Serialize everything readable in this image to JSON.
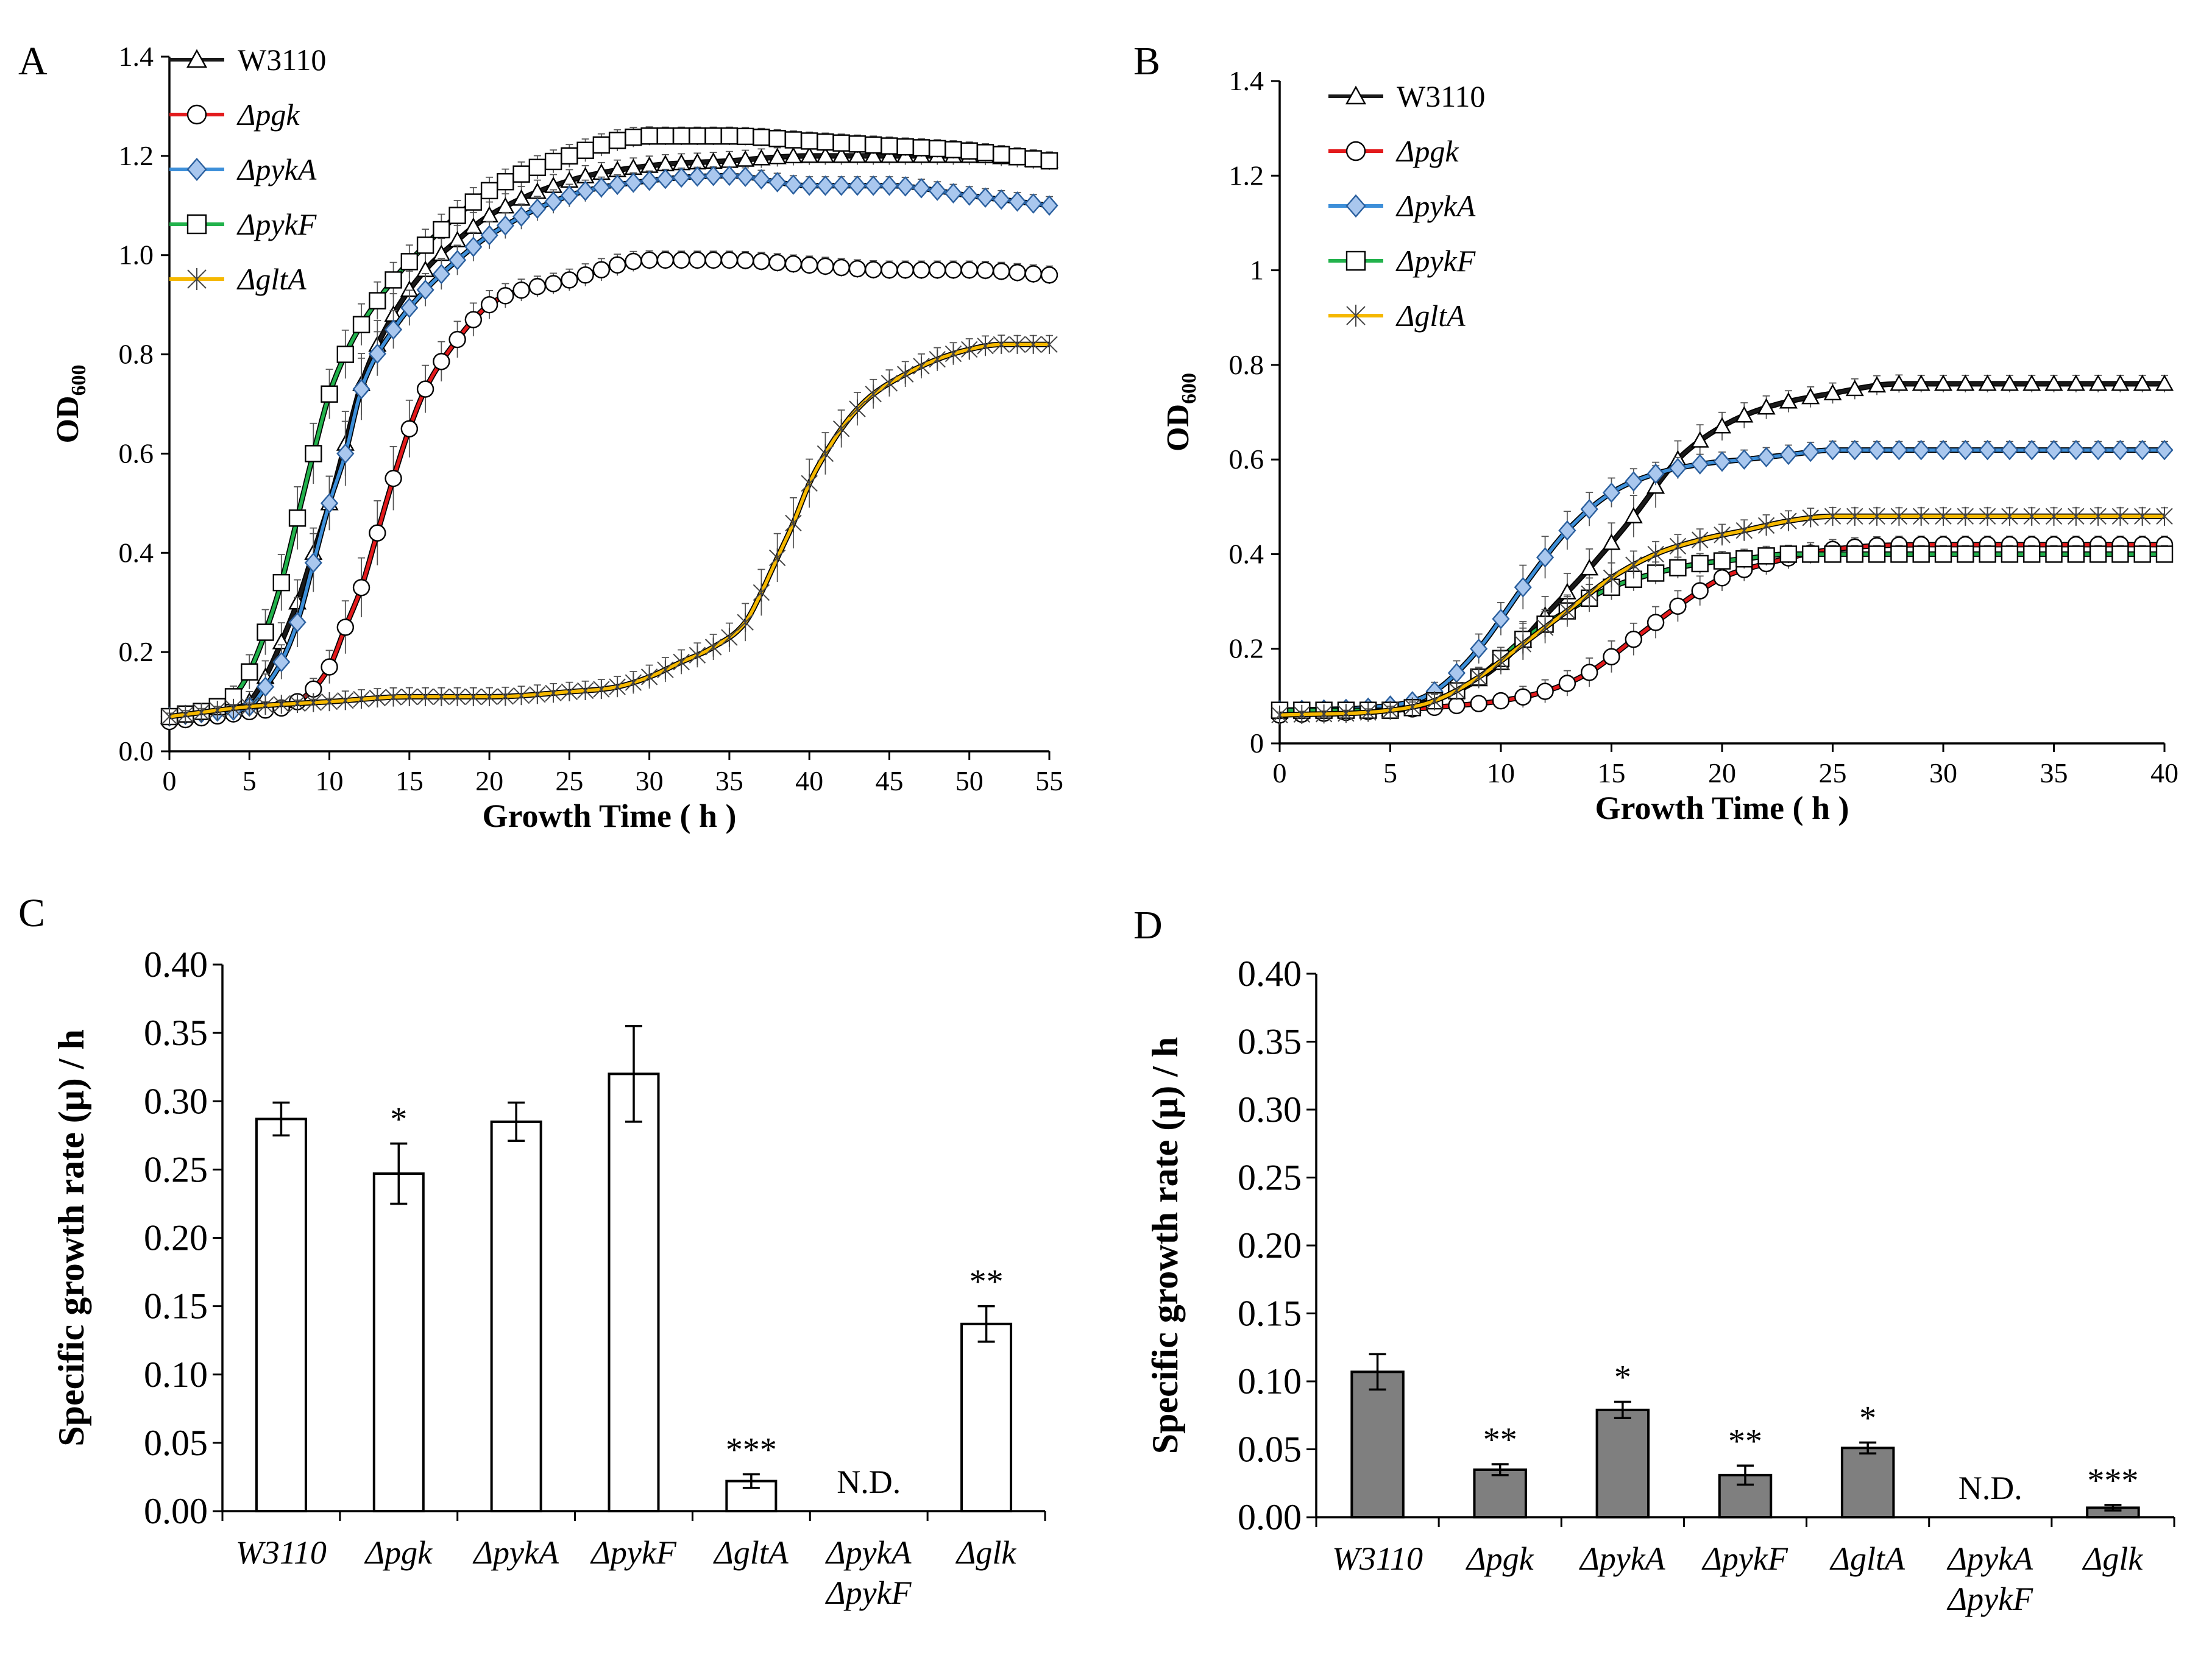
{
  "figure": {
    "styles": {
      "line_colors": {
        "W3110": "#1a1a1a",
        "pgk": "#e31a1c",
        "pykA": "#3d8fd9",
        "pykF": "#22b24c",
        "gltA": "#f5b800"
      },
      "bar_fill_C": "#ffffff",
      "bar_fill_D": "#7f7f7f",
      "stroke": "#000000"
    }
  },
  "chart_data": [
    {
      "panel": "A",
      "type": "line",
      "xlabel": "Growth Time ( h )",
      "ylabel_main": "OD",
      "ylabel_sub": "600",
      "xlim": [
        0,
        55
      ],
      "ylim": [
        0,
        1.4
      ],
      "xticks": [
        "0",
        "5",
        "10",
        "15",
        "20",
        "25",
        "30",
        "35",
        "40",
        "45",
        "50",
        "55"
      ],
      "yticks": [
        "0.0",
        "0.2",
        "0.4",
        "0.6",
        "0.8",
        "1.0",
        "1.2",
        "1.4"
      ],
      "legend": [
        "W3110",
        "Δpgk",
        "ΔpykA",
        "ΔpykF",
        "ΔgltA"
      ],
      "series": [
        {
          "name": "W3110",
          "key": "W3110",
          "marker": "triangle",
          "x": [
            0,
            3,
            5,
            6,
            7,
            8,
            9,
            10,
            11,
            12,
            14,
            16,
            18,
            20,
            25,
            30,
            35,
            40,
            45,
            50,
            55
          ],
          "y": [
            0.07,
            0.08,
            0.1,
            0.15,
            0.22,
            0.3,
            0.4,
            0.5,
            0.62,
            0.74,
            0.88,
            0.97,
            1.03,
            1.08,
            1.15,
            1.18,
            1.19,
            1.2,
            1.2,
            1.2,
            1.19
          ]
        },
        {
          "name": "Δpgk",
          "key": "pgk",
          "marker": "circle",
          "x": [
            0,
            5,
            8,
            10,
            11,
            12,
            13,
            14,
            15,
            16,
            18,
            20,
            25,
            30,
            35,
            40,
            45,
            50,
            55
          ],
          "y": [
            0.06,
            0.08,
            0.1,
            0.17,
            0.25,
            0.33,
            0.44,
            0.55,
            0.65,
            0.73,
            0.83,
            0.9,
            0.95,
            0.99,
            0.99,
            0.98,
            0.97,
            0.97,
            0.96
          ]
        },
        {
          "name": "ΔpykA",
          "key": "pykA",
          "marker": "diamond",
          "x": [
            0,
            3,
            5,
            6,
            7,
            8,
            9,
            10,
            11,
            12,
            14,
            16,
            18,
            20,
            25,
            30,
            35,
            40,
            45,
            50,
            55
          ],
          "y": [
            0.07,
            0.08,
            0.09,
            0.13,
            0.18,
            0.26,
            0.38,
            0.5,
            0.6,
            0.73,
            0.85,
            0.93,
            0.99,
            1.04,
            1.12,
            1.15,
            1.16,
            1.14,
            1.14,
            1.12,
            1.1
          ]
        },
        {
          "name": "ΔpykF",
          "key": "pykF",
          "marker": "square",
          "x": [
            0,
            3,
            4,
            5,
            6,
            7,
            8,
            9,
            10,
            11,
            12,
            14,
            16,
            18,
            20,
            25,
            30,
            35,
            40,
            45,
            50,
            55
          ],
          "y": [
            0.07,
            0.09,
            0.11,
            0.16,
            0.24,
            0.34,
            0.47,
            0.6,
            0.72,
            0.8,
            0.86,
            0.95,
            1.02,
            1.08,
            1.13,
            1.2,
            1.24,
            1.24,
            1.23,
            1.22,
            1.21,
            1.19
          ]
        },
        {
          "name": "ΔgltA",
          "key": "gltA",
          "marker": "asterisk",
          "x": [
            0,
            5,
            10,
            15,
            20,
            25,
            28,
            30,
            32,
            34,
            36,
            37,
            38,
            39,
            40,
            41,
            42,
            43,
            44,
            46,
            48,
            50,
            52,
            55
          ],
          "y": [
            0.07,
            0.09,
            0.1,
            0.11,
            0.11,
            0.12,
            0.13,
            0.15,
            0.18,
            0.21,
            0.26,
            0.32,
            0.39,
            0.46,
            0.54,
            0.6,
            0.65,
            0.69,
            0.72,
            0.76,
            0.79,
            0.81,
            0.82,
            0.82
          ]
        }
      ]
    },
    {
      "panel": "B",
      "type": "line",
      "xlabel": "Growth Time ( h )",
      "ylabel_main": "OD",
      "ylabel_sub": "600",
      "xlim": [
        0,
        40
      ],
      "ylim": [
        0,
        1.4
      ],
      "xticks": [
        "0",
        "5",
        "10",
        "15",
        "20",
        "25",
        "30",
        "35",
        "40"
      ],
      "yticks": [
        "0",
        "0.2",
        "0.4",
        "0.6",
        "0.8",
        "1",
        "1.2",
        "1.4"
      ],
      "legend": [
        "W3110",
        "Δpgk",
        "ΔpykA",
        "ΔpykF",
        "ΔgltA"
      ],
      "series": [
        {
          "name": "W3110",
          "key": "W3110",
          "marker": "triangle",
          "x": [
            0,
            4,
            6,
            8,
            10,
            12,
            14,
            16,
            18,
            20,
            22,
            25,
            28,
            30,
            35,
            40
          ],
          "y": [
            0.07,
            0.07,
            0.08,
            0.11,
            0.17,
            0.27,
            0.37,
            0.48,
            0.6,
            0.67,
            0.71,
            0.74,
            0.76,
            0.76,
            0.76,
            0.76
          ]
        },
        {
          "name": "Δpgk",
          "key": "pgk",
          "marker": "circle",
          "x": [
            0,
            5,
            8,
            10,
            12,
            14,
            16,
            18,
            20,
            22,
            25,
            30,
            35,
            40
          ],
          "y": [
            0.06,
            0.07,
            0.08,
            0.09,
            0.11,
            0.15,
            0.22,
            0.29,
            0.35,
            0.38,
            0.41,
            0.42,
            0.42,
            0.42
          ]
        },
        {
          "name": "ΔpykA",
          "key": "pykA",
          "marker": "diamond",
          "x": [
            0,
            5,
            7,
            9,
            11,
            13,
            15,
            17,
            19,
            21,
            23,
            25,
            30,
            35,
            40
          ],
          "y": [
            0.07,
            0.08,
            0.11,
            0.2,
            0.33,
            0.45,
            0.53,
            0.57,
            0.59,
            0.6,
            0.61,
            0.62,
            0.62,
            0.62,
            0.62
          ]
        },
        {
          "name": "ΔpykF",
          "key": "pykF",
          "marker": "square",
          "x": [
            0,
            5,
            7,
            9,
            11,
            13,
            15,
            17,
            19,
            21,
            23,
            25,
            30,
            35,
            40
          ],
          "y": [
            0.07,
            0.07,
            0.09,
            0.14,
            0.22,
            0.28,
            0.33,
            0.36,
            0.38,
            0.39,
            0.4,
            0.4,
            0.4,
            0.4,
            0.4
          ]
        },
        {
          "name": "ΔgltA",
          "key": "gltA",
          "marker": "asterisk",
          "x": [
            0,
            5,
            7,
            9,
            11,
            13,
            15,
            17,
            19,
            21,
            23,
            25,
            30,
            35,
            40
          ],
          "y": [
            0.06,
            0.07,
            0.09,
            0.14,
            0.21,
            0.28,
            0.35,
            0.4,
            0.43,
            0.45,
            0.47,
            0.48,
            0.48,
            0.48,
            0.48
          ]
        }
      ]
    },
    {
      "panel": "C",
      "type": "bar",
      "ylabel": "Specific growth rate (μ) / h",
      "ylim": [
        0,
        0.4
      ],
      "yticks": [
        "0.00",
        "0.05",
        "0.10",
        "0.15",
        "0.20",
        "0.25",
        "0.30",
        "0.35",
        "0.40"
      ],
      "categories": [
        "W3110",
        "Δpgk",
        "ΔpykA",
        "ΔpykF",
        "ΔgltA",
        "ΔpykA ΔpykF",
        "Δglk"
      ],
      "category_lines": [
        [
          "W3110"
        ],
        [
          "Δpgk"
        ],
        [
          "ΔpykA"
        ],
        [
          "ΔpykF"
        ],
        [
          "ΔgltA"
        ],
        [
          "ΔpykA",
          "ΔpykF"
        ],
        [
          "Δglk"
        ]
      ],
      "values": [
        0.287,
        0.247,
        0.285,
        0.32,
        0.022,
        null,
        0.137
      ],
      "errors": [
        0.012,
        0.022,
        0.014,
        0.035,
        0.005,
        null,
        0.013
      ],
      "significance": [
        "",
        "*",
        "",
        "",
        "***",
        "N.D.",
        "**"
      ]
    },
    {
      "panel": "D",
      "type": "bar",
      "ylabel": "Specific growth rate (μ) / h",
      "ylim": [
        0,
        0.4
      ],
      "yticks": [
        "0.00",
        "0.05",
        "0.10",
        "0.15",
        "0.20",
        "0.25",
        "0.30",
        "0.35",
        "0.40"
      ],
      "categories": [
        "W3110",
        "Δpgk",
        "ΔpykA",
        "ΔpykF",
        "ΔgltA",
        "ΔpykA ΔpykF",
        "Δglk"
      ],
      "category_lines": [
        [
          "W3110"
        ],
        [
          "Δpgk"
        ],
        [
          "ΔpykA"
        ],
        [
          "ΔpykF"
        ],
        [
          "ΔgltA"
        ],
        [
          "ΔpykA",
          "ΔpykF"
        ],
        [
          "Δglk"
        ]
      ],
      "values": [
        0.107,
        0.035,
        0.079,
        0.031,
        0.051,
        null,
        0.007
      ],
      "errors": [
        0.013,
        0.004,
        0.006,
        0.007,
        0.004,
        null,
        0.002
      ],
      "significance": [
        "",
        "**",
        "*",
        "**",
        "*",
        "N.D.",
        "***"
      ]
    }
  ]
}
